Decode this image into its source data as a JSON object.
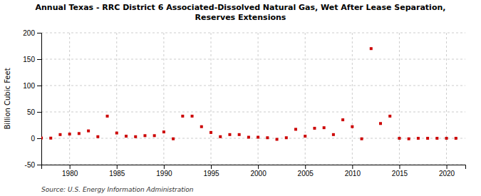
{
  "chart_data": {
    "type": "scatter",
    "title": "Annual Texas - RRC District 6 Associated-Dissolved Natural Gas, Wet After Lease Separation,\nReserves Extensions",
    "ylabel": "Billion Cubic Feet",
    "source": "Source: U.S. Energy Information Administration",
    "x": [
      1977,
      1978,
      1979,
      1980,
      1981,
      1982,
      1983,
      1984,
      1985,
      1986,
      1987,
      1988,
      1989,
      1990,
      1991,
      1992,
      1993,
      1994,
      1995,
      1996,
      1997,
      1998,
      1999,
      2000,
      2001,
      2002,
      2003,
      2004,
      2005,
      2006,
      2007,
      2008,
      2009,
      2010,
      2011,
      2012,
      2013,
      2014,
      2015,
      2016,
      2017,
      2018,
      2019,
      2020,
      2021
    ],
    "values": [
      0.5,
      0.3,
      7,
      8,
      9,
      14,
      3,
      42,
      10,
      4,
      3,
      5,
      5,
      12,
      -1,
      42,
      42,
      22,
      11,
      3,
      7,
      7,
      2,
      2,
      1,
      -2,
      1,
      17,
      4,
      19,
      20,
      7,
      35,
      22,
      -1,
      170,
      28,
      42,
      0,
      -1,
      0,
      0,
      0,
      0,
      0
    ],
    "color": "#cc0000",
    "marker": "square",
    "xlim": [
      1977,
      2022
    ],
    "xticks": [
      1980,
      1985,
      1990,
      1995,
      2000,
      2005,
      2010,
      2015,
      2020
    ],
    "ylim": [
      -50,
      200
    ],
    "yticks": [
      -50,
      0,
      50,
      100,
      150,
      200
    ],
    "grid": true
  }
}
